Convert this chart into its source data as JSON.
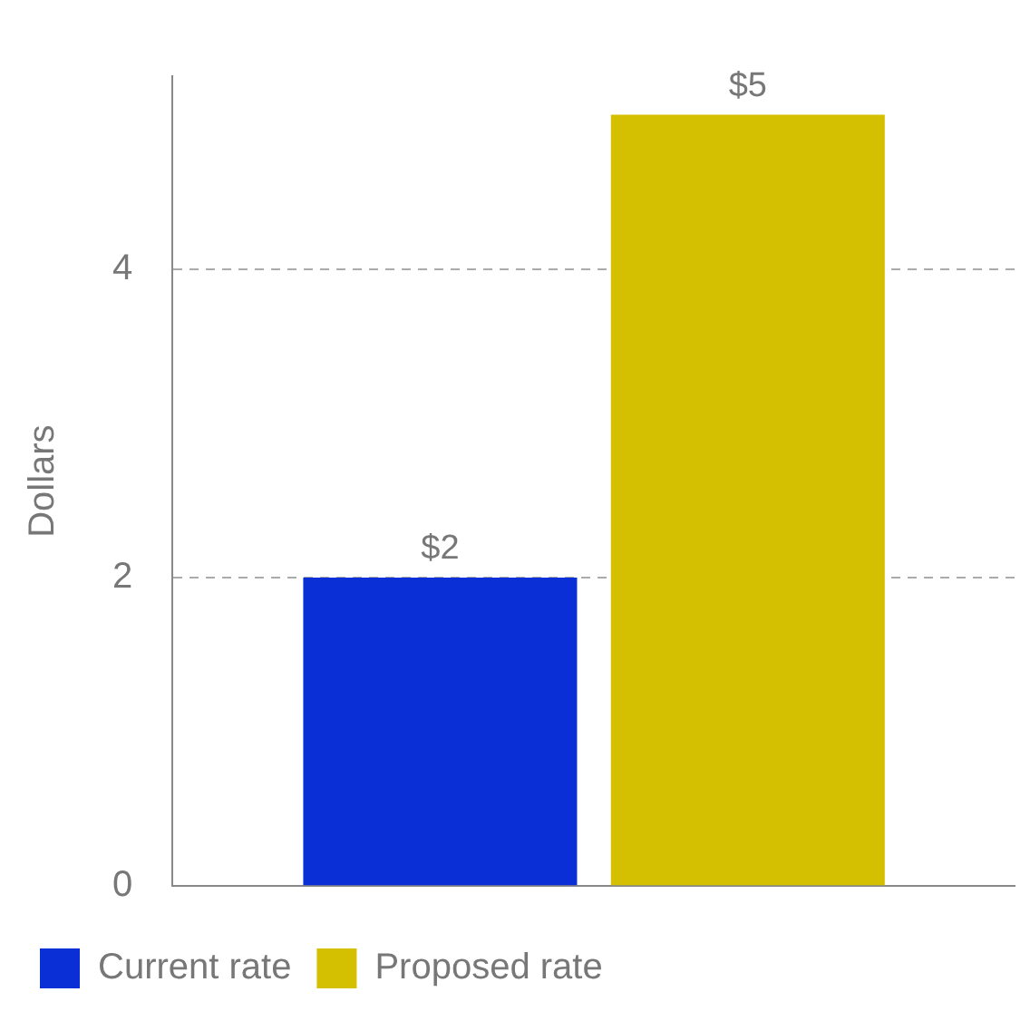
{
  "chart_data": {
    "type": "bar",
    "ylabel": "Dollars",
    "categories": [
      null
    ],
    "series": [
      {
        "name": "Current rate",
        "color": "#0a2fd6",
        "values": [
          2
        ],
        "value_labels": [
          "$2"
        ]
      },
      {
        "name": "Proposed rate",
        "color": "#d4c000",
        "values": [
          5
        ],
        "value_labels": [
          "$5"
        ]
      }
    ],
    "ylim": [
      0,
      5.25
    ],
    "yticks": [
      0,
      2,
      4
    ],
    "grid": "y",
    "legend": "bottom"
  }
}
